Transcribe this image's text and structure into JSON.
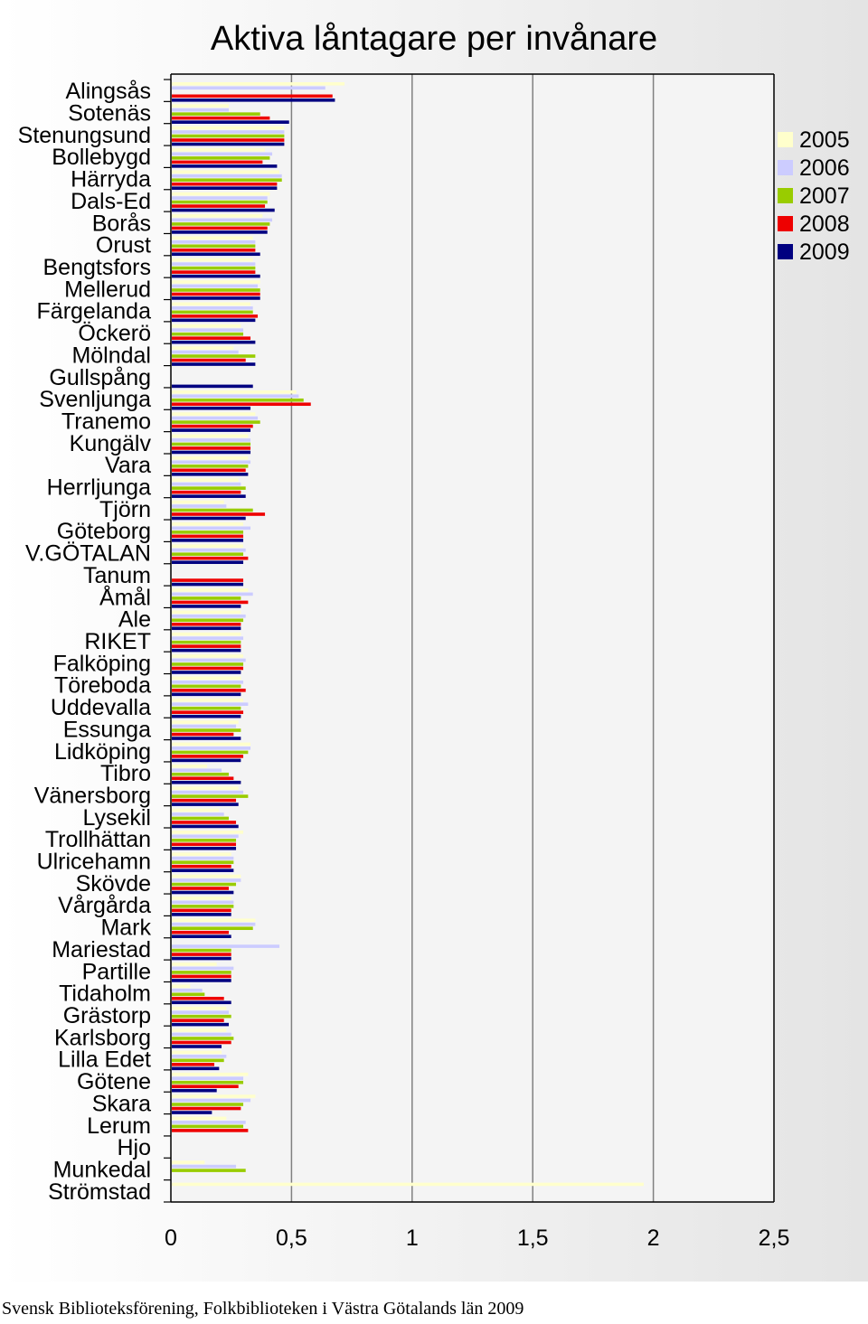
{
  "source_note": "Svensk Biblioteksförening, Folkbiblioteken i Västra Götalands län 2009",
  "chart_data": {
    "type": "bar",
    "orientation": "horizontal",
    "title": "Aktiva låntagare per invånare",
    "xlim": [
      0,
      2.5
    ],
    "xticks": [
      "0",
      "0,5",
      "1",
      "1,5",
      "2",
      "2,5"
    ],
    "grid": true,
    "legend_position": "right",
    "categories": [
      "Alingsås",
      "Sotenäs",
      "Stenungsund",
      "Bollebygd",
      "Härryda",
      "Dals-Ed",
      "Borås",
      "Orust",
      "Bengtsfors",
      "Mellerud",
      "Färgelanda",
      "Öckerö",
      "Mölndal",
      "Gullspång",
      "Svenljunga",
      "Tranemo",
      "Kungälv",
      "Vara",
      "Herrljunga",
      "Tjörn",
      "Göteborg",
      "V.GÖTALAN",
      "Tanum",
      "Åmål",
      "Ale",
      "RIKET",
      "Falköping",
      "Töreboda",
      "Uddevalla",
      "Essunga",
      "Lidköping",
      "Tibro",
      "Vänersborg",
      "Lysekil",
      "Trollhättan",
      "Ulricehamn",
      "Skövde",
      "Vårgårda",
      "Mark",
      "Mariestad",
      "Partille",
      "Tidaholm",
      "Grästorp",
      "Karlsborg",
      "Lilla Edet",
      "Götene",
      "Skara",
      "Lerum",
      "Hjo",
      "Munkedal",
      "Strömstad"
    ],
    "series": [
      {
        "name": "2005",
        "color": "#ffffcc",
        "values": [
          0.72,
          0.24,
          0.47,
          0.39,
          0.45,
          0.41,
          0.38,
          0.34,
          0.34,
          0.37,
          0.33,
          0.29,
          0.26,
          0.0,
          0.52,
          0.35,
          0.32,
          0.32,
          0.28,
          0.22,
          0.3,
          0.3,
          0.0,
          0.32,
          0.29,
          0.29,
          0.3,
          0.29,
          0.3,
          0.28,
          0.33,
          0.15,
          0.28,
          0.2,
          0.3,
          0.25,
          0.29,
          0.25,
          0.35,
          0.0,
          0.19,
          0.08,
          0.23,
          0.23,
          0.21,
          0.32,
          0.35,
          0.23,
          0.0,
          0.14,
          1.96
        ]
      },
      {
        "name": "2006",
        "color": "#ccccff",
        "values": [
          0.64,
          0.24,
          0.47,
          0.42,
          0.46,
          0.4,
          0.42,
          0.35,
          0.35,
          0.36,
          0.34,
          0.3,
          0.28,
          0.0,
          0.53,
          0.36,
          0.33,
          0.33,
          0.29,
          0.23,
          0.33,
          0.31,
          0.0,
          0.34,
          0.31,
          0.3,
          0.31,
          0.3,
          0.32,
          0.27,
          0.33,
          0.21,
          0.3,
          0.22,
          0.28,
          0.26,
          0.29,
          0.26,
          0.35,
          0.45,
          0.26,
          0.13,
          0.24,
          0.25,
          0.23,
          0.3,
          0.33,
          0.31,
          0.0,
          0.27,
          0.0
        ]
      },
      {
        "name": "2007",
        "color": "#99cc00",
        "values": [
          0.0,
          0.37,
          0.47,
          0.41,
          0.46,
          0.4,
          0.41,
          0.35,
          0.35,
          0.37,
          0.34,
          0.3,
          0.35,
          0.0,
          0.55,
          0.37,
          0.33,
          0.32,
          0.31,
          0.34,
          0.3,
          0.3,
          0.0,
          0.29,
          0.3,
          0.29,
          0.3,
          0.29,
          0.29,
          0.29,
          0.32,
          0.24,
          0.32,
          0.24,
          0.27,
          0.26,
          0.27,
          0.26,
          0.34,
          0.25,
          0.25,
          0.14,
          0.25,
          0.26,
          0.22,
          0.3,
          0.3,
          0.3,
          0.0,
          0.31,
          0.0
        ]
      },
      {
        "name": "2008",
        "color": "#ee0000",
        "values": [
          0.67,
          0.41,
          0.47,
          0.38,
          0.44,
          0.39,
          0.4,
          0.35,
          0.35,
          0.37,
          0.36,
          0.33,
          0.31,
          0.0,
          0.58,
          0.34,
          0.33,
          0.31,
          0.29,
          0.39,
          0.3,
          0.32,
          0.3,
          0.32,
          0.29,
          0.29,
          0.3,
          0.31,
          0.3,
          0.26,
          0.3,
          0.26,
          0.27,
          0.27,
          0.27,
          0.25,
          0.24,
          0.25,
          0.24,
          0.25,
          0.25,
          0.22,
          0.22,
          0.25,
          0.18,
          0.28,
          0.29,
          0.32,
          0.0,
          0.0,
          0.0
        ]
      },
      {
        "name": "2009",
        "color": "#000080",
        "values": [
          0.68,
          0.49,
          0.47,
          0.44,
          0.44,
          0.43,
          0.4,
          0.37,
          0.37,
          0.37,
          0.35,
          0.35,
          0.35,
          0.34,
          0.33,
          0.33,
          0.33,
          0.32,
          0.31,
          0.31,
          0.3,
          0.3,
          0.3,
          0.29,
          0.29,
          0.29,
          0.29,
          0.29,
          0.29,
          0.29,
          0.29,
          0.29,
          0.28,
          0.28,
          0.27,
          0.26,
          0.26,
          0.25,
          0.25,
          0.25,
          0.25,
          0.25,
          0.24,
          0.21,
          0.2,
          0.19,
          0.17,
          0.0,
          0.0,
          0.0,
          0.0
        ]
      }
    ]
  }
}
